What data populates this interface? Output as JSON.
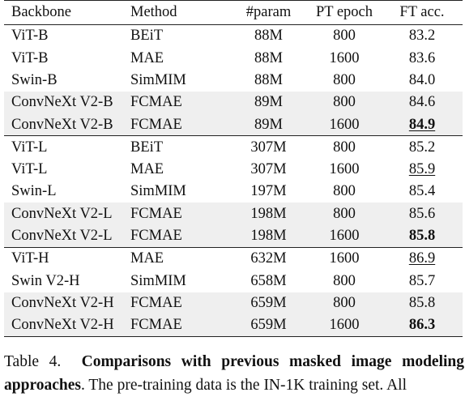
{
  "table": {
    "headers": [
      "Backbone",
      "Method",
      "#param",
      "PT epoch",
      "FT acc."
    ],
    "groups": [
      {
        "rows": [
          {
            "backbone": "ViT-B",
            "method": "BEiT",
            "param": "88M",
            "epoch": "800",
            "acc": "83.2",
            "shaded": false,
            "bold": false,
            "underline": false
          },
          {
            "backbone": "ViT-B",
            "method": "MAE",
            "param": "88M",
            "epoch": "1600",
            "acc": "83.6",
            "shaded": false,
            "bold": false,
            "underline": false
          },
          {
            "backbone": "Swin-B",
            "method": "SimMIM",
            "param": "88M",
            "epoch": "800",
            "acc": "84.0",
            "shaded": false,
            "bold": false,
            "underline": false
          },
          {
            "backbone": "ConvNeXt V2-B",
            "method": "FCMAE",
            "param": "89M",
            "epoch": "800",
            "acc": "84.6",
            "shaded": true,
            "bold": false,
            "underline": false
          },
          {
            "backbone": "ConvNeXt V2-B",
            "method": "FCMAE",
            "param": "89M",
            "epoch": "1600",
            "acc": "84.9",
            "shaded": true,
            "bold": true,
            "underline": true
          }
        ]
      },
      {
        "rows": [
          {
            "backbone": "ViT-L",
            "method": "BEiT",
            "param": "307M",
            "epoch": "800",
            "acc": "85.2",
            "shaded": false,
            "bold": false,
            "underline": false
          },
          {
            "backbone": "ViT-L",
            "method": "MAE",
            "param": "307M",
            "epoch": "1600",
            "acc": "85.9",
            "shaded": false,
            "bold": false,
            "underline": true
          },
          {
            "backbone": "Swin-L",
            "method": "SimMIM",
            "param": "197M",
            "epoch": "800",
            "acc": "85.4",
            "shaded": false,
            "bold": false,
            "underline": false
          },
          {
            "backbone": "ConvNeXt V2-L",
            "method": "FCMAE",
            "param": "198M",
            "epoch": "800",
            "acc": "85.6",
            "shaded": true,
            "bold": false,
            "underline": false
          },
          {
            "backbone": "ConvNeXt V2-L",
            "method": "FCMAE",
            "param": "198M",
            "epoch": "1600",
            "acc": "85.8",
            "shaded": true,
            "bold": true,
            "underline": false
          }
        ]
      },
      {
        "rows": [
          {
            "backbone": "ViT-H",
            "method": "MAE",
            "param": "632M",
            "epoch": "1600",
            "acc": "86.9",
            "shaded": false,
            "bold": false,
            "underline": true
          },
          {
            "backbone": "Swin V2-H",
            "method": "SimMIM",
            "param": "658M",
            "epoch": "800",
            "acc": "85.7",
            "shaded": false,
            "bold": false,
            "underline": false
          },
          {
            "backbone": "ConvNeXt V2-H",
            "method": "FCMAE",
            "param": "659M",
            "epoch": "800",
            "acc": "85.8",
            "shaded": true,
            "bold": false,
            "underline": false
          },
          {
            "backbone": "ConvNeXt V2-H",
            "method": "FCMAE",
            "param": "659M",
            "epoch": "1600",
            "acc": "86.3",
            "shaded": true,
            "bold": true,
            "underline": false
          }
        ]
      }
    ]
  },
  "caption": {
    "label": "Table 4.",
    "bold_title_line1": "Comparisons with previous masked image modeling",
    "bold_title_line2": "approaches",
    "rest": ". The pre-training data is the IN-1K training set. All"
  }
}
